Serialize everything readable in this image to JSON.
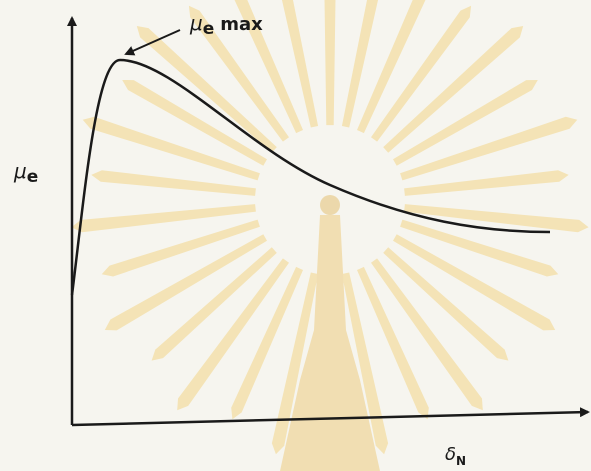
{
  "annotation": {
    "symbol": "μ",
    "subscript": "e",
    "suffix": "max"
  },
  "y_label": {
    "symbol": "μ",
    "subscript": "e"
  },
  "x_label": {
    "symbol": "δ",
    "subscript": "N"
  }
}
